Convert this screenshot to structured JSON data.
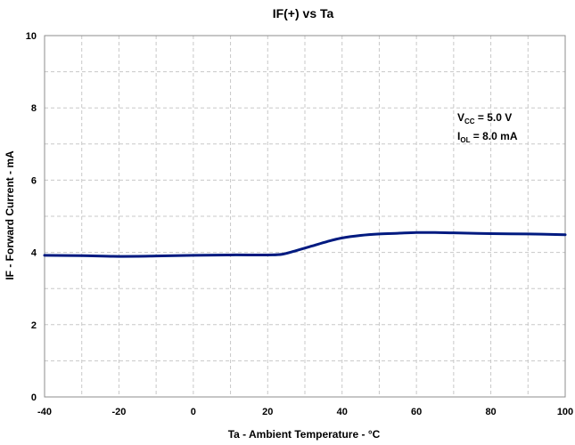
{
  "chart_data": {
    "type": "line",
    "title": "IF(+) vs Ta",
    "xlabel": "Ta - Ambient Temperature - °C",
    "ylabel": "IF - Forward Current - mA",
    "xlim": [
      -40,
      100
    ],
    "ylim": [
      0,
      10
    ],
    "xticks": [
      "-40",
      "-20",
      "0",
      "20",
      "40",
      "60",
      "80",
      "100"
    ],
    "yticks": [
      "0",
      "2",
      "4",
      "6",
      "8",
      "10"
    ],
    "grid": true,
    "annotation": {
      "line1_main": "V",
      "line1_sub": "CC",
      "line1_rest": " = 5.0 V",
      "line2_main": "I",
      "line2_sub": "OL",
      "line2_rest": " = 8.0 mA"
    },
    "series": [
      {
        "color": "#001a80",
        "x": [
          -40,
          -30,
          -20,
          -10,
          0,
          10,
          20,
          24,
          28,
          32,
          36,
          40,
          45,
          50,
          55,
          60,
          65,
          70,
          80,
          90,
          100
        ],
        "y": [
          3.92,
          3.91,
          3.89,
          3.9,
          3.92,
          3.93,
          3.93,
          3.95,
          4.06,
          4.18,
          4.3,
          4.4,
          4.47,
          4.51,
          4.53,
          4.55,
          4.55,
          4.54,
          4.52,
          4.51,
          4.49
        ]
      }
    ]
  }
}
